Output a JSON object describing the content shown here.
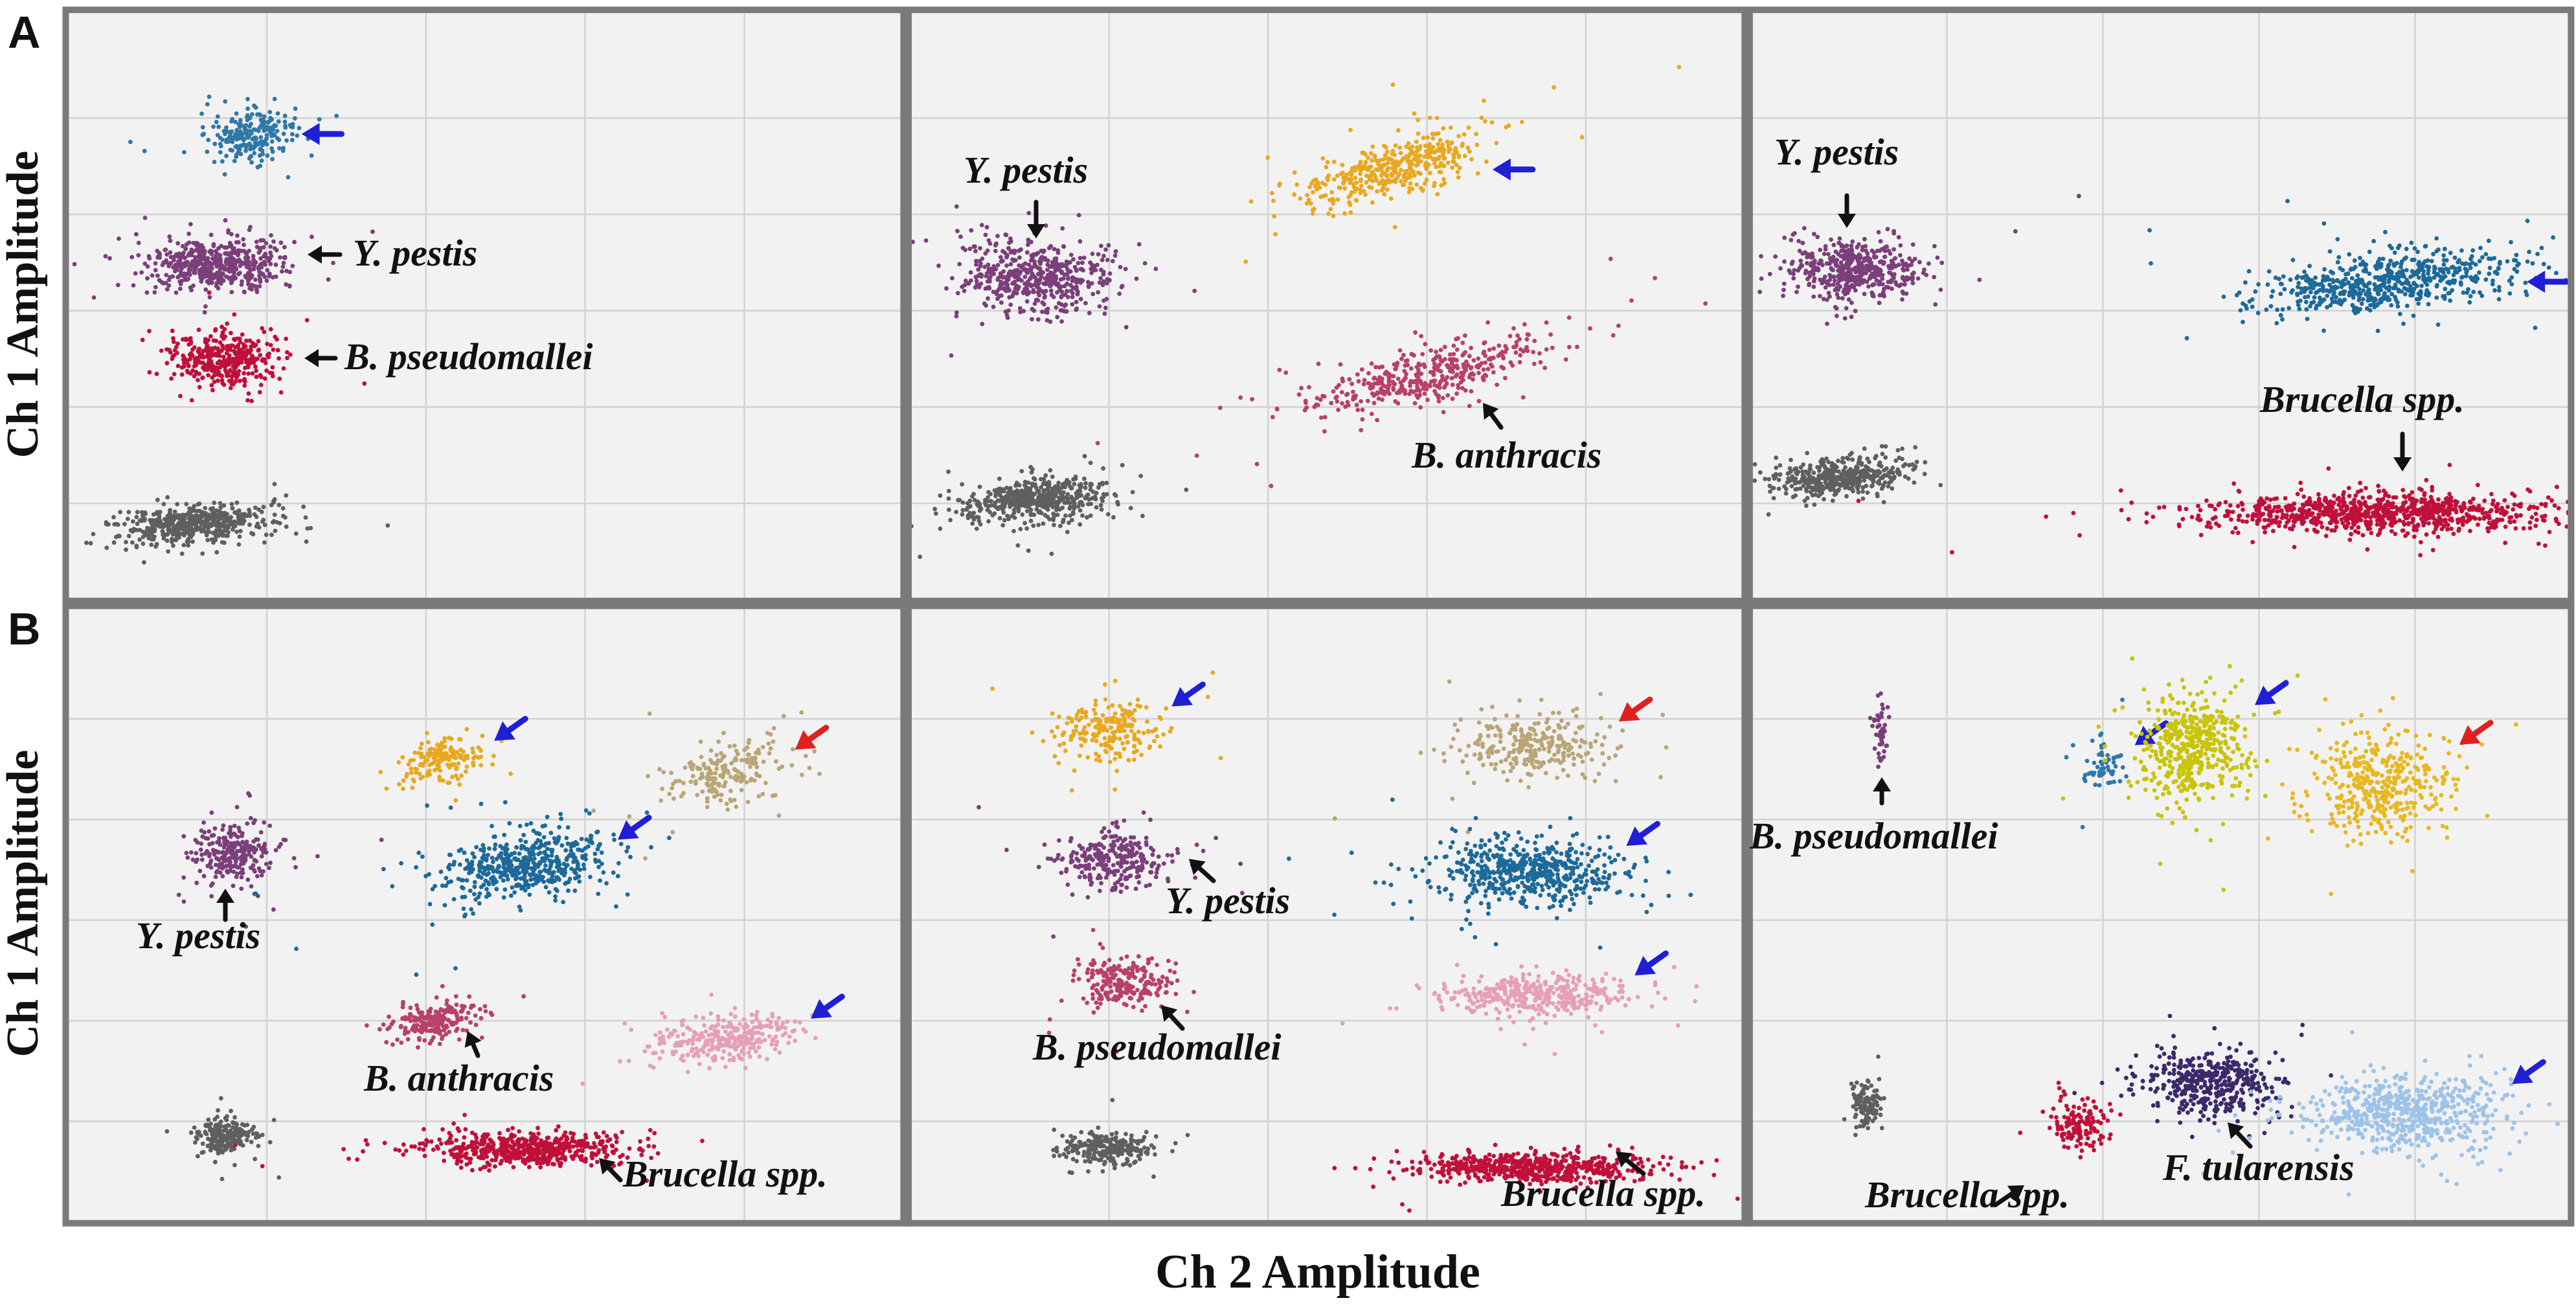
{
  "figure": {
    "row_labels": [
      "A",
      "B"
    ],
    "ylabel": "Ch 1 Amplitude",
    "xlabel": "Ch 2 Amplitude"
  },
  "colors": {
    "panel_bg": "#f2f2f2",
    "grid": "#d2d2d2",
    "frame": "#7a7a7a",
    "blue_arrow": "#1f1fd6",
    "red_arrow": "#e02020",
    "black_arrow": "#111111"
  },
  "chart_data": [
    {
      "type": "scatter",
      "row": "A",
      "col": 0,
      "clusters": [
        {
          "name": "cluster-blue",
          "color": "#2f78a8",
          "cx": 0.22,
          "cy": 0.21,
          "sx": 0.025,
          "sy": 0.022,
          "n": 220,
          "rot": 0,
          "marker": {
            "type": "arrow",
            "color": "blue"
          }
        },
        {
          "name": "cluster-purple",
          "color": "#7b3f7a",
          "cx": 0.18,
          "cy": 0.43,
          "sx": 0.04,
          "sy": 0.022,
          "n": 520,
          "rot": 0,
          "label": "Y. pestis"
        },
        {
          "name": "cluster-red",
          "color": "#c0103a",
          "cx": 0.19,
          "cy": 0.59,
          "sx": 0.03,
          "sy": 0.022,
          "n": 380,
          "rot": 0,
          "label": "B. pseudomallei"
        },
        {
          "name": "cluster-gray",
          "color": "#5f5f5f",
          "cx": 0.15,
          "cy": 0.87,
          "sx": 0.045,
          "sy": 0.015,
          "n": 500,
          "rot": -4
        }
      ]
    },
    {
      "type": "scatter",
      "row": "A",
      "col": 1,
      "clusters": [
        {
          "name": "cluster-orange",
          "color": "#e8a820",
          "cx": 0.58,
          "cy": 0.27,
          "sx": 0.055,
          "sy": 0.022,
          "n": 420,
          "rot": -18,
          "marker": {
            "type": "arrow",
            "color": "blue"
          }
        },
        {
          "name": "cluster-purple",
          "color": "#7b3f7a",
          "cx": 0.15,
          "cy": 0.45,
          "sx": 0.045,
          "sy": 0.03,
          "n": 520,
          "rot": 0,
          "label": "Y. pestis"
        },
        {
          "name": "cluster-rose",
          "color": "#b8406a",
          "cx": 0.62,
          "cy": 0.62,
          "sx": 0.07,
          "sy": 0.022,
          "n": 420,
          "rot": -14,
          "label": "B. anthracis"
        },
        {
          "name": "cluster-gray",
          "color": "#5f5f5f",
          "cx": 0.15,
          "cy": 0.83,
          "sx": 0.045,
          "sy": 0.018,
          "n": 500,
          "rot": -5
        }
      ]
    },
    {
      "type": "scatter",
      "row": "A",
      "col": 2,
      "clusters": [
        {
          "name": "cluster-purple",
          "color": "#7b3f7a",
          "cx": 0.13,
          "cy": 0.44,
          "sx": 0.04,
          "sy": 0.025,
          "n": 480,
          "rot": 0,
          "label": "Y. pestis"
        },
        {
          "name": "cluster-blue",
          "color": "#1d6a9a",
          "cx": 0.78,
          "cy": 0.46,
          "sx": 0.08,
          "sy": 0.024,
          "n": 620,
          "rot": -6,
          "marker": {
            "type": "arrow",
            "color": "blue"
          }
        },
        {
          "name": "cluster-gray",
          "color": "#5f5f5f",
          "cx": 0.11,
          "cy": 0.79,
          "sx": 0.04,
          "sy": 0.016,
          "n": 420,
          "rot": -4
        },
        {
          "name": "cluster-red",
          "color": "#c0103a",
          "cx": 0.77,
          "cy": 0.85,
          "sx": 0.11,
          "sy": 0.016,
          "n": 900,
          "rot": 0,
          "label": "Brucella spp."
        }
      ]
    },
    {
      "type": "scatter",
      "row": "B",
      "col": 0,
      "clusters": [
        {
          "name": "cluster-orange",
          "color": "#e8a820",
          "cx": 0.45,
          "cy": 0.25,
          "sx": 0.025,
          "sy": 0.018,
          "n": 160,
          "rot": -12,
          "marker": {
            "type": "arrow",
            "color": "blue"
          }
        },
        {
          "name": "cluster-tan",
          "color": "#b9a576",
          "cx": 0.79,
          "cy": 0.27,
          "sx": 0.035,
          "sy": 0.022,
          "n": 200,
          "rot": -10,
          "marker": {
            "type": "arrow",
            "color": "red"
          }
        },
        {
          "name": "cluster-purple",
          "color": "#7b3f7a",
          "cx": 0.2,
          "cy": 0.4,
          "sx": 0.025,
          "sy": 0.025,
          "n": 260,
          "rot": 0,
          "label": "Y. pestis"
        },
        {
          "name": "cluster-blue",
          "color": "#1d6a9a",
          "cx": 0.55,
          "cy": 0.42,
          "sx": 0.05,
          "sy": 0.025,
          "n": 520,
          "rot": -10,
          "marker": {
            "type": "arrow",
            "color": "blue"
          }
        },
        {
          "name": "cluster-rose",
          "color": "#b8406a",
          "cx": 0.44,
          "cy": 0.67,
          "sx": 0.028,
          "sy": 0.016,
          "n": 200,
          "rot": -8,
          "label": "B. anthracis"
        },
        {
          "name": "cluster-pink",
          "color": "#e6a0b6",
          "cx": 0.79,
          "cy": 0.7,
          "sx": 0.045,
          "sy": 0.018,
          "n": 300,
          "rot": -8,
          "marker": {
            "type": "arrow",
            "color": "blue"
          }
        },
        {
          "name": "cluster-gray",
          "color": "#5f5f5f",
          "cx": 0.19,
          "cy": 0.86,
          "sx": 0.02,
          "sy": 0.014,
          "n": 200,
          "rot": -4
        },
        {
          "name": "cluster-red",
          "color": "#c0103a",
          "cx": 0.55,
          "cy": 0.88,
          "sx": 0.06,
          "sy": 0.013,
          "n": 560,
          "rot": 0,
          "label": "Brucella spp."
        }
      ]
    },
    {
      "type": "scatter",
      "row": "B",
      "col": 1,
      "clusters": [
        {
          "name": "cluster-orange",
          "color": "#e8a820",
          "cx": 0.24,
          "cy": 0.2,
          "sx": 0.032,
          "sy": 0.022,
          "n": 220,
          "rot": 0,
          "marker": {
            "type": "arrow",
            "color": "blue"
          }
        },
        {
          "name": "cluster-tan",
          "color": "#b9a576",
          "cx": 0.75,
          "cy": 0.23,
          "sx": 0.045,
          "sy": 0.026,
          "n": 280,
          "rot": 0,
          "marker": {
            "type": "arrow",
            "color": "red"
          }
        },
        {
          "name": "cluster-purple",
          "color": "#7b3f7a",
          "cx": 0.25,
          "cy": 0.41,
          "sx": 0.035,
          "sy": 0.022,
          "n": 280,
          "rot": 0,
          "label": "Y. pestis"
        },
        {
          "name": "cluster-blue",
          "color": "#1d6a9a",
          "cx": 0.74,
          "cy": 0.43,
          "sx": 0.055,
          "sy": 0.025,
          "n": 540,
          "rot": 0,
          "marker": {
            "type": "arrow",
            "color": "blue"
          }
        },
        {
          "name": "cluster-rose",
          "color": "#b8406a",
          "cx": 0.26,
          "cy": 0.61,
          "sx": 0.028,
          "sy": 0.018,
          "n": 220,
          "rot": 0,
          "label": "B. pseudomallei"
        },
        {
          "name": "cluster-pink",
          "color": "#e6a0b6",
          "cx": 0.75,
          "cy": 0.63,
          "sx": 0.055,
          "sy": 0.018,
          "n": 380,
          "rot": 0,
          "marker": {
            "type": "arrow",
            "color": "blue"
          }
        },
        {
          "name": "cluster-gray",
          "color": "#5f5f5f",
          "cx": 0.24,
          "cy": 0.88,
          "sx": 0.028,
          "sy": 0.012,
          "n": 240,
          "rot": 0
        },
        {
          "name": "cluster-red",
          "color": "#c0103a",
          "cx": 0.74,
          "cy": 0.91,
          "sx": 0.075,
          "sy": 0.011,
          "n": 600,
          "rot": 0,
          "label": "Brucella spp."
        }
      ]
    },
    {
      "type": "scatter",
      "row": "B",
      "col": 2,
      "clusters": [
        {
          "name": "cluster-purple-small",
          "color": "#7b3f7a",
          "cx": 0.16,
          "cy": 0.21,
          "sx": 0.004,
          "sy": 0.03,
          "n": 45,
          "rot": 0,
          "label": "B. pseudomallei"
        },
        {
          "name": "cluster-blue-small",
          "color": "#2f78a8",
          "cx": 0.43,
          "cy": 0.26,
          "sx": 0.013,
          "sy": 0.02,
          "n": 60,
          "rot": 0,
          "marker": {
            "type": "arrow",
            "color": "blue"
          }
        },
        {
          "name": "cluster-yellow",
          "color": "#c8c40a",
          "cx": 0.54,
          "cy": 0.23,
          "sx": 0.032,
          "sy": 0.045,
          "n": 480,
          "rot": 0,
          "marker": {
            "type": "arrow",
            "color": "blue"
          }
        },
        {
          "name": "cluster-gold",
          "color": "#e8b820",
          "cx": 0.77,
          "cy": 0.29,
          "sx": 0.042,
          "sy": 0.042,
          "n": 420,
          "rot": 0,
          "marker": {
            "type": "arrow",
            "color": "red"
          }
        },
        {
          "name": "cluster-gray",
          "color": "#5f5f5f",
          "cx": 0.14,
          "cy": 0.81,
          "sx": 0.009,
          "sy": 0.018,
          "n": 110,
          "rot": 0
        },
        {
          "name": "cluster-red",
          "color": "#c0103a",
          "cx": 0.4,
          "cy": 0.84,
          "sx": 0.018,
          "sy": 0.018,
          "n": 140,
          "rot": 0,
          "label": "Brucella spp."
        },
        {
          "name": "cluster-navy",
          "color": "#3a2a6a",
          "cx": 0.56,
          "cy": 0.77,
          "sx": 0.038,
          "sy": 0.025,
          "n": 420,
          "rot": 0,
          "label": "F. tularensis"
        },
        {
          "name": "cluster-lightblue",
          "color": "#9ec3e8",
          "cx": 0.8,
          "cy": 0.82,
          "sx": 0.06,
          "sy": 0.028,
          "n": 620,
          "rot": 0,
          "marker": {
            "type": "arrow",
            "color": "blue"
          }
        }
      ]
    }
  ]
}
